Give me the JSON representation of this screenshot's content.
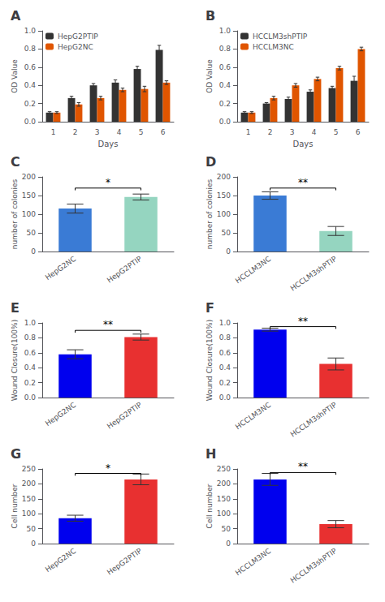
{
  "chart_data": [
    {
      "type": "bar",
      "title": "A",
      "categories": [
        1,
        2,
        3,
        4,
        5,
        6
      ],
      "series": [
        {
          "name": "HepG2PTIP",
          "color": "#333333",
          "values": [
            0.1,
            0.26,
            0.4,
            0.43,
            0.58,
            0.79
          ],
          "errors": [
            0.01,
            0.02,
            0.02,
            0.03,
            0.03,
            0.05
          ]
        },
        {
          "name": "HepG2NC",
          "color": "#e05500",
          "values": [
            0.1,
            0.19,
            0.26,
            0.35,
            0.36,
            0.43
          ],
          "errors": [
            0.01,
            0.02,
            0.02,
            0.02,
            0.03,
            0.02
          ]
        }
      ],
      "xlabel": "Days",
      "ylabel": "OD Value",
      "ylim": [
        0,
        1.0
      ],
      "yticks": [
        {
          "value": 0,
          "label": "0.0"
        },
        0.2,
        0.4,
        0.6,
        0.8,
        {
          "value": 1,
          "label": "1.0"
        }
      ],
      "legend": "upper left",
      "grid": false
    },
    {
      "type": "bar",
      "title": "B",
      "categories": [
        1,
        2,
        3,
        4,
        5,
        6
      ],
      "series": [
        {
          "name": "HCCLM3shPTIP",
          "color": "#333333",
          "values": [
            0.1,
            0.2,
            0.25,
            0.33,
            0.37,
            0.45
          ],
          "errors": [
            0.01,
            0.01,
            0.02,
            0.02,
            0.02,
            0.05
          ]
        },
        {
          "name": "HCCLM3NC",
          "color": "#e05500",
          "values": [
            0.1,
            0.26,
            0.4,
            0.47,
            0.59,
            0.8
          ],
          "errors": [
            0.01,
            0.02,
            0.02,
            0.02,
            0.02,
            0.02
          ]
        }
      ],
      "xlabel": "Days",
      "ylabel": "OD Value",
      "ylim": [
        0,
        1.0
      ],
      "yticks": [
        {
          "value": 0,
          "label": "0.0"
        },
        0.2,
        0.4,
        0.6,
        0.8,
        {
          "value": 1,
          "label": "1.0"
        }
      ],
      "legend": "upper left",
      "grid": false
    },
    {
      "type": "bar",
      "title": "C",
      "categories": [
        "HepG2NC",
        "HepG2PTIP"
      ],
      "values": [
        115,
        146
      ],
      "errors": [
        12,
        8
      ],
      "colors": [
        "#3a7bd5",
        "#95d5c0"
      ],
      "ylabel": "number of colonies",
      "ylim": [
        0,
        200
      ],
      "yticks": [
        0,
        50,
        100,
        150,
        200
      ],
      "annotations": [
        {
          "text": "*",
          "y": 170,
          "x": [
            "HepG2NC",
            "HepG2PTIP"
          ]
        }
      ],
      "grid": false
    },
    {
      "type": "bar",
      "title": "D",
      "categories": [
        "HCCLM3NC",
        "HCCLM3shPTIP"
      ],
      "values": [
        150,
        55
      ],
      "errors": [
        10,
        12
      ],
      "colors": [
        "#3a7bd5",
        "#95d5c0"
      ],
      "ylabel": "number of colonies",
      "ylim": [
        0,
        200
      ],
      "yticks": [
        0,
        50,
        100,
        150,
        200
      ],
      "annotations": [
        {
          "text": "**",
          "y": 170,
          "x": [
            "HCCLM3NC",
            "HCCLM3shPTIP"
          ]
        }
      ],
      "grid": false
    },
    {
      "type": "bar",
      "title": "E",
      "categories": [
        "HepG2NC",
        "HepG2PTIP"
      ],
      "values": [
        0.58,
        0.81
      ],
      "errors": [
        0.06,
        0.04
      ],
      "colors": [
        "#0000ee",
        "#e83030"
      ],
      "ylabel": "Wound Closure(100%)",
      "ylim": [
        0,
        1.0
      ],
      "yticks": [
        {
          "value": 0,
          "label": "0.0"
        },
        0.2,
        0.4,
        0.6,
        0.8,
        {
          "value": 1,
          "label": "1.0"
        }
      ],
      "annotations": [
        {
          "text": "**",
          "y": 0.9,
          "x": [
            "HepG2NC",
            "HepG2PTIP"
          ]
        }
      ],
      "grid": false
    },
    {
      "type": "bar",
      "title": "F",
      "categories": [
        "HCCLM3NC",
        "HCCLM3shPTIP"
      ],
      "values": [
        0.91,
        0.45
      ],
      "errors": [
        0.02,
        0.08
      ],
      "colors": [
        "#0000ee",
        "#e83030"
      ],
      "ylabel": "Wound Closure(100%)",
      "ylim": [
        0,
        1.0
      ],
      "yticks": [
        {
          "value": 0,
          "label": "0.0"
        },
        0.2,
        0.4,
        0.6,
        0.8,
        {
          "value": 1,
          "label": "1.0"
        }
      ],
      "annotations": [
        {
          "text": "**",
          "y": 0.95,
          "x": [
            "HCCLM3NC",
            "HCCLM3shPTIP"
          ]
        }
      ],
      "grid": false
    },
    {
      "type": "bar",
      "title": "G",
      "categories": [
        "HepG2NC",
        "HepG2PTIP"
      ],
      "values": [
        85,
        215
      ],
      "errors": [
        10,
        18
      ],
      "colors": [
        "#0000ee",
        "#e83030"
      ],
      "ylabel": "Cell number",
      "ylim": [
        0,
        250
      ],
      "yticks": [
        0,
        50,
        100,
        150,
        200,
        250
      ],
      "annotations": [
        {
          "text": "*",
          "y": 235,
          "x": [
            "HepG2NC",
            "HepG2PTIP"
          ]
        }
      ],
      "grid": false
    },
    {
      "type": "bar",
      "title": "H",
      "categories": [
        "HCCLM3NC",
        "HCCLM3shPTIP"
      ],
      "values": [
        215,
        65
      ],
      "errors": [
        20,
        12
      ],
      "colors": [
        "#0000ee",
        "#e83030"
      ],
      "ylabel": "Cell number",
      "ylim": [
        0,
        250
      ],
      "yticks": [
        0,
        50,
        100,
        150,
        200,
        250
      ],
      "annotations": [
        {
          "text": "**",
          "y": 238,
          "x": [
            "HCCLM3NC",
            "HCCLM3shPTIP"
          ]
        }
      ],
      "grid": false
    }
  ]
}
